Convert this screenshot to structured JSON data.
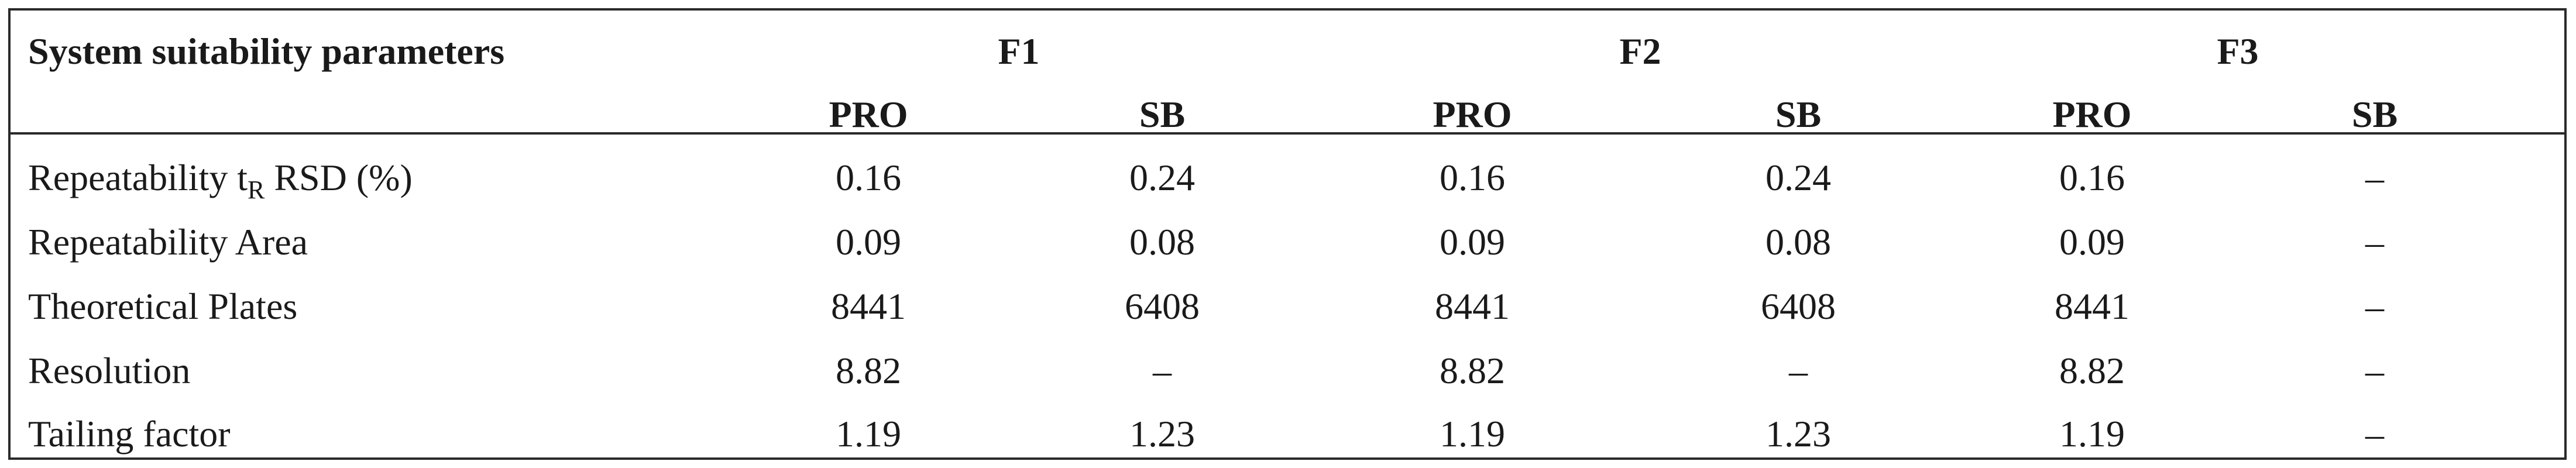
{
  "table": {
    "param_header": "System suitability parameters",
    "groups": [
      "F1",
      "F2",
      "F3"
    ],
    "subheaders": [
      "PRO",
      "SB",
      "PRO",
      "SB",
      "PRO",
      "SB"
    ],
    "rows": [
      {
        "label_main": "Repeatability t",
        "label_sub": "R",
        "label_rest": " RSD (%)",
        "values": [
          "0.16",
          "0.24",
          "0.16",
          "0.24",
          "0.16",
          "–"
        ]
      },
      {
        "label": "Repeatability Area",
        "values": [
          "0.09",
          "0.08",
          "0.09",
          "0.08",
          "0.09",
          "–"
        ]
      },
      {
        "label": "Theoretical Plates",
        "values": [
          "8441",
          "6408",
          "8441",
          "6408",
          "8441",
          "–"
        ]
      },
      {
        "label": "Resolution",
        "values": [
          "8.82",
          "–",
          "8.82",
          "–",
          "8.82",
          "–"
        ]
      },
      {
        "label": "Tailing factor",
        "values": [
          "1.19",
          "1.23",
          "1.19",
          "1.23",
          "1.19",
          "–"
        ]
      }
    ]
  }
}
